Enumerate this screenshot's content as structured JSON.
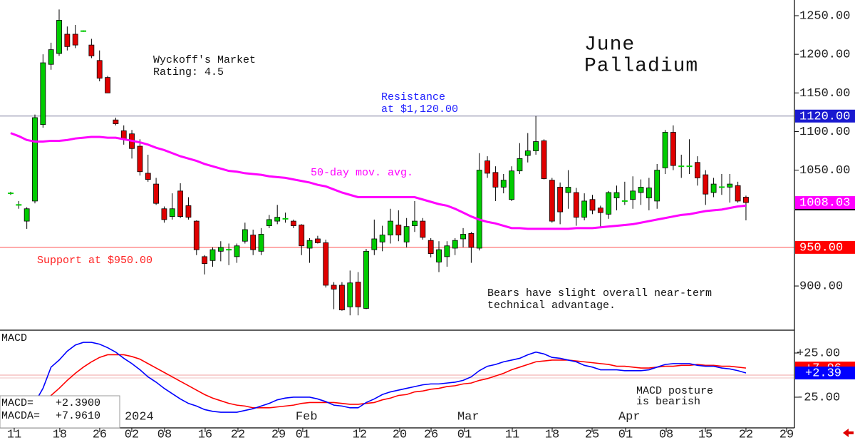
{
  "chart_data": [
    {
      "type": "candlestick",
      "title": [
        "June",
        "Palladium"
      ],
      "open": [
        1020,
        1005,
        984,
        1010,
        1109,
        1187,
        1201,
        1226,
        1226,
        1230,
        1212,
        1192,
        1170,
        1115,
        1101,
        1097,
        1081,
        1046,
        1032,
        1000,
        990,
        1023,
        1004,
        984,
        938,
        933,
        945,
        947,
        938,
        958,
        966,
        945,
        978,
        984,
        987,
        984,
        979,
        949,
        961,
        956,
        901,
        901,
        873,
        905,
        871,
        947,
        957,
        966,
        979,
        957,
        978,
        984,
        959,
        931,
        938,
        949,
        961,
        968,
        949,
        1062,
        1047,
        1028,
        1012,
        1049,
        1069,
        1075,
        1088,
        1037,
        1028,
        1021,
        1021,
        989,
        1012,
        1001,
        993,
        1014,
        1010,
        1012,
        1021,
        1014,
        1010,
        1053,
        1099,
        1055,
        1055,
        1060,
        1044,
        1021,
        1028,
        1028,
        1030,
        1015
      ],
      "high": [
        1022,
        1010,
        1002,
        1122,
        1200,
        1215,
        1258,
        1236,
        1238,
        1231,
        1220,
        1205,
        1172,
        1118,
        1108,
        1102,
        1090,
        1070,
        1040,
        1003,
        1020,
        1033,
        1015,
        985,
        940,
        950,
        958,
        955,
        955,
        982,
        973,
        975,
        992,
        1005,
        995,
        986,
        980,
        962,
        965,
        960,
        905,
        905,
        920,
        918,
        948,
        986,
        978,
        1000,
        998,
        988,
        1010,
        988,
        962,
        958,
        958,
        962,
        975,
        970,
        1072,
        1068,
        1055,
        1045,
        1055,
        1085,
        1098,
        1120,
        1090,
        1040,
        1034,
        1050,
        1027,
        1020,
        1018,
        1004,
        1023,
        1030,
        1035,
        1042,
        1038,
        1040,
        1058,
        1102,
        1108,
        1070,
        1090,
        1068,
        1050,
        1040,
        1045,
        1045,
        1035,
        1017
      ],
      "low": [
        1018,
        1000,
        974,
        1007,
        1105,
        1180,
        1198,
        1205,
        1208,
        1229,
        1195,
        1165,
        1150,
        1108,
        1083,
        1065,
        1043,
        1035,
        1005,
        982,
        986,
        988,
        986,
        940,
        915,
        925,
        932,
        927,
        930,
        955,
        940,
        940,
        975,
        980,
        982,
        975,
        940,
        930,
        955,
        898,
        870,
        868,
        862,
        862,
        870,
        940,
        945,
        955,
        958,
        950,
        970,
        960,
        937,
        918,
        925,
        940,
        950,
        930,
        946,
        1040,
        1010,
        1020,
        1010,
        1045,
        1060,
        1070,
        1038,
        982,
        980,
        1000,
        978,
        985,
        993,
        975,
        987,
        998,
        1005,
        1000,
        1005,
        998,
        1000,
        1045,
        1050,
        1040,
        1045,
        1030,
        1005,
        1015,
        1018,
        1008,
        1008,
        985
      ],
      "close": [
        1020,
        1005,
        1000,
        1118,
        1189,
        1206,
        1244,
        1210,
        1212,
        1230,
        1198,
        1169,
        1150,
        1110,
        1090,
        1078,
        1048,
        1038,
        1007,
        986,
        1000,
        990,
        989,
        947,
        929,
        947,
        950,
        947,
        952,
        973,
        947,
        967,
        986,
        989,
        987,
        978,
        952,
        959,
        956,
        901,
        896,
        869,
        904,
        873,
        945,
        961,
        966,
        984,
        966,
        977,
        984,
        963,
        942,
        947,
        952,
        959,
        967,
        950,
        1050,
        1046,
        1028,
        1037,
        1049,
        1065,
        1075,
        1087,
        1039,
        984,
        996,
        1028,
        989,
        1010,
        998,
        995,
        1021,
        1021,
        1010,
        1023,
        1028,
        1027,
        1050,
        1099,
        1056,
        1055,
        1055,
        1040,
        1019,
        1032,
        1028,
        1032,
        1010,
        1008.03
      ],
      "up_color": "#00cc00",
      "down_color": "#e00000",
      "moving_average": {
        "name": "50-day mov. avg.",
        "color": "#ff00ff",
        "values": [
          1098,
          1094,
          1089,
          1087,
          1087,
          1088,
          1088,
          1089,
          1091,
          1092,
          1093,
          1093,
          1092,
          1092,
          1090,
          1088,
          1086,
          1083,
          1079,
          1076,
          1072,
          1068,
          1065,
          1062,
          1058,
          1055,
          1052,
          1049,
          1048,
          1046,
          1045,
          1044,
          1042,
          1041,
          1040,
          1038,
          1036,
          1034,
          1031,
          1029,
          1025,
          1021,
          1018,
          1015,
          1015,
          1015,
          1015,
          1015,
          1015,
          1015,
          1015,
          1012,
          1009,
          1006,
          1004,
          1000,
          995,
          990,
          986,
          983,
          981,
          978,
          975,
          975,
          974,
          974,
          974,
          974,
          974,
          974,
          975,
          975,
          975,
          976,
          977,
          978,
          979,
          980,
          982,
          984,
          986,
          988,
          990,
          992,
          993,
          995,
          997,
          998,
          999,
          1001,
          1003,
          1004
        ]
      },
      "ylim": [
        842.8,
        1270.3
      ],
      "yticks": [
        {
          "value": 1250,
          "label": "1250.00"
        },
        {
          "value": 1200,
          "label": "1200.00"
        },
        {
          "value": 1150,
          "label": "1150.00"
        },
        {
          "value": 1100,
          "label": "1100.00"
        },
        {
          "value": 1050,
          "label": "1050.00"
        },
        {
          "value": 900,
          "label": "900.00"
        }
      ],
      "xlim": [
        -1.32,
        97.0
      ],
      "xticks": [
        {
          "value": 0.44,
          "label": "11"
        },
        {
          "value": 6.08,
          "label": "18"
        },
        {
          "value": 11.02,
          "label": "26"
        },
        {
          "value": 14.99,
          "label": "02"
        },
        {
          "value": 19.05,
          "label": "08"
        },
        {
          "value": 24.07,
          "label": "16"
        },
        {
          "value": 28.13,
          "label": "22"
        },
        {
          "value": 33.16,
          "label": "29"
        },
        {
          "value": 36.15,
          "label": "01"
        },
        {
          "value": 43.2,
          "label": "12"
        },
        {
          "value": 48.15,
          "label": "20"
        },
        {
          "value": 52.03,
          "label": "26"
        },
        {
          "value": 56.17,
          "label": "01"
        },
        {
          "value": 62.08,
          "label": "11"
        },
        {
          "value": 67.02,
          "label": "18"
        },
        {
          "value": 71.96,
          "label": "25"
        },
        {
          "value": 76.1,
          "label": "01"
        },
        {
          "value": 81.13,
          "label": "08"
        },
        {
          "value": 85.98,
          "label": "15"
        },
        {
          "value": 91.0,
          "label": "22"
        },
        {
          "value": 96.03,
          "label": "29"
        }
      ],
      "x_period_labels": [
        {
          "value": 14.99,
          "label": "2024"
        },
        {
          "value": 36.15,
          "label": "Feb"
        },
        {
          "value": 56.17,
          "label": "Mar"
        },
        {
          "value": 76.1,
          "label": "Apr"
        }
      ],
      "levels": [
        {
          "value": 1120,
          "label": "1120.00",
          "color": "#1a1ad0",
          "line_color": "#8080a0",
          "text": [
            "Resistance",
            "at $1,120.00"
          ]
        },
        {
          "value": 950,
          "label": "950.00",
          "color": "#ff0000",
          "line_color": "#ff5050",
          "text": [
            "Support at $950.00"
          ]
        }
      ],
      "last_price": {
        "value": 1008.03,
        "label": "1008.03"
      },
      "annotations": {
        "rating": [
          "Wyckoff's Market",
          "Rating: 4.5"
        ],
        "outlook": [
          "Bears have slight overall near-term",
          "technical advantage."
        ]
      }
    },
    {
      "type": "line",
      "title": "MACD",
      "series": [
        {
          "name": "MACD=",
          "readout": "+2.3900",
          "end_label": "+2.39",
          "color": "#0000ff",
          "values": [
            null,
            null,
            null,
            -31,
            -15,
            9,
            17,
            27,
            34,
            37,
            37,
            35,
            31,
            26,
            19,
            13,
            6,
            -2,
            -8,
            -15,
            -21,
            -27,
            -32,
            -35,
            -39,
            -41,
            -42,
            -42,
            -42,
            -40,
            -38,
            -35,
            -32,
            -28,
            -26,
            -25,
            -25,
            -25,
            -27,
            -30,
            -34,
            -35,
            -37,
            -37,
            -31,
            -27,
            -22,
            -19,
            -17,
            -15,
            -13,
            -11,
            -10,
            -10,
            -9,
            -8,
            -6,
            -2,
            5,
            10,
            12,
            15,
            17,
            19,
            23,
            26,
            24,
            20,
            19,
            17,
            15,
            11,
            9,
            6,
            6,
            6,
            5,
            5,
            5,
            6,
            9,
            12,
            13,
            13,
            13,
            11,
            10,
            10,
            8,
            7,
            5,
            2.39
          ]
        },
        {
          "name": "MACDA=",
          "readout": "+7.9610",
          "end_label": "+7.96",
          "color": "#ff0000",
          "values": [
            null,
            null,
            null,
            null,
            -31,
            -23,
            -15,
            -6,
            2,
            9,
            15,
            20,
            23,
            23,
            23,
            21,
            18,
            13,
            8,
            3,
            -2,
            -7,
            -12,
            -17,
            -22,
            -26,
            -29,
            -32,
            -34,
            -35,
            -37,
            -37,
            -37,
            -36,
            -35,
            -34,
            -32,
            -31,
            -31,
            -31,
            -31,
            -32,
            -33,
            -33,
            -32,
            -31,
            -28,
            -26,
            -23,
            -22,
            -19,
            -18,
            -16,
            -15,
            -13,
            -12,
            -10,
            -9,
            -6,
            -4,
            -1,
            2,
            6,
            9,
            12,
            15,
            16,
            17,
            17,
            17,
            16,
            15,
            14,
            13,
            12,
            10,
            10,
            9,
            8,
            8,
            9,
            10,
            10,
            11,
            11,
            12,
            11,
            11,
            10,
            10,
            9,
            7.961
          ]
        }
      ],
      "ylim": [
        -59.7,
        50.8
      ],
      "yticks": [
        {
          "value": 25,
          "label": "+25.00"
        },
        {
          "value": -25,
          "label": "-25.00"
        }
      ],
      "annotation": [
        "MACD posture",
        "is bearish"
      ]
    }
  ]
}
